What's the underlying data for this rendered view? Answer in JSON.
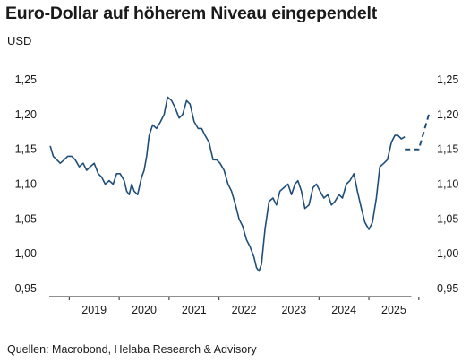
{
  "header": {
    "title": "Euro-Dollar auf höherem Niveau eingependelt",
    "unit": "USD"
  },
  "footer": {
    "source": "Quellen: Macrobond, Helaba Research & Advisory"
  },
  "colors": {
    "line": "#1f4e79",
    "axis": "#222222"
  },
  "chart_data": {
    "type": "line",
    "title": "Euro-Dollar auf höherem Niveau eingependelt",
    "ylabel": "USD",
    "ylim": [
      0.95,
      1.25
    ],
    "yticks": [
      0.95,
      1.0,
      1.05,
      1.1,
      1.15,
      1.2,
      1.25
    ],
    "ytick_labels": [
      "0,95",
      "1,00",
      "1,05",
      "1,10",
      "1,15",
      "1,20",
      "1,25"
    ],
    "xlim": [
      2018.6,
      2026.2
    ],
    "xtick_labels": [
      "2019",
      "2020",
      "2021",
      "2022",
      "2023",
      "2024",
      "2025"
    ],
    "grid": false,
    "series": [
      {
        "style": "solid",
        "x": [
          2018.62,
          2018.68,
          2018.75,
          2018.82,
          2018.9,
          2018.97,
          2019.05,
          2019.12,
          2019.2,
          2019.28,
          2019.35,
          2019.42,
          2019.5,
          2019.58,
          2019.65,
          2019.72,
          2019.8,
          2019.88,
          2019.95,
          2020.02,
          2020.1,
          2020.15,
          2020.2,
          2020.25,
          2020.3,
          2020.37,
          2020.45,
          2020.5,
          2020.55,
          2020.6,
          2020.67,
          2020.75,
          2020.83,
          2020.9,
          2020.97,
          2021.05,
          2021.12,
          2021.2,
          2021.27,
          2021.35,
          2021.42,
          2021.5,
          2021.58,
          2021.65,
          2021.72,
          2021.8,
          2021.88,
          2021.95,
          2022.02,
          2022.1,
          2022.18,
          2022.25,
          2022.33,
          2022.4,
          2022.47,
          2022.55,
          2022.62,
          2022.7,
          2022.75,
          2022.8,
          2022.85,
          2022.92,
          2023.0,
          2023.08,
          2023.15,
          2023.22,
          2023.3,
          2023.38,
          2023.45,
          2023.52,
          2023.58,
          2023.65,
          2023.72,
          2023.8,
          2023.88,
          2023.95,
          2024.02,
          2024.1,
          2024.18,
          2024.25,
          2024.32,
          2024.4,
          2024.47,
          2024.55,
          2024.62,
          2024.7,
          2024.77,
          2024.85,
          2024.92,
          2025.0,
          2025.07,
          2025.15,
          2025.22,
          2025.3,
          2025.37,
          2025.45,
          2025.52,
          2025.58,
          2025.65,
          2025.72
        ],
        "y": [
          1.155,
          1.14,
          1.135,
          1.13,
          1.135,
          1.14,
          1.14,
          1.135,
          1.125,
          1.13,
          1.12,
          1.125,
          1.13,
          1.115,
          1.11,
          1.1,
          1.105,
          1.1,
          1.115,
          1.115,
          1.105,
          1.09,
          1.085,
          1.1,
          1.09,
          1.085,
          1.11,
          1.12,
          1.14,
          1.17,
          1.185,
          1.18,
          1.19,
          1.2,
          1.225,
          1.22,
          1.21,
          1.195,
          1.2,
          1.22,
          1.215,
          1.19,
          1.18,
          1.18,
          1.17,
          1.16,
          1.135,
          1.135,
          1.13,
          1.12,
          1.1,
          1.09,
          1.07,
          1.05,
          1.04,
          1.02,
          1.01,
          0.995,
          0.98,
          0.975,
          0.985,
          1.035,
          1.075,
          1.08,
          1.07,
          1.09,
          1.095,
          1.1,
          1.085,
          1.1,
          1.105,
          1.09,
          1.065,
          1.07,
          1.095,
          1.1,
          1.09,
          1.08,
          1.085,
          1.07,
          1.075,
          1.085,
          1.08,
          1.1,
          1.105,
          1.115,
          1.09,
          1.065,
          1.045,
          1.035,
          1.045,
          1.08,
          1.125,
          1.13,
          1.135,
          1.16,
          1.17,
          1.17,
          1.165,
          1.168
        ]
      },
      {
        "style": "dashed",
        "x": [
          2025.72,
          2025.8,
          2025.9,
          2026.0,
          2026.1,
          2026.2
        ],
        "y": [
          1.15,
          1.15,
          1.15,
          1.15,
          1.175,
          1.2
        ]
      }
    ]
  }
}
